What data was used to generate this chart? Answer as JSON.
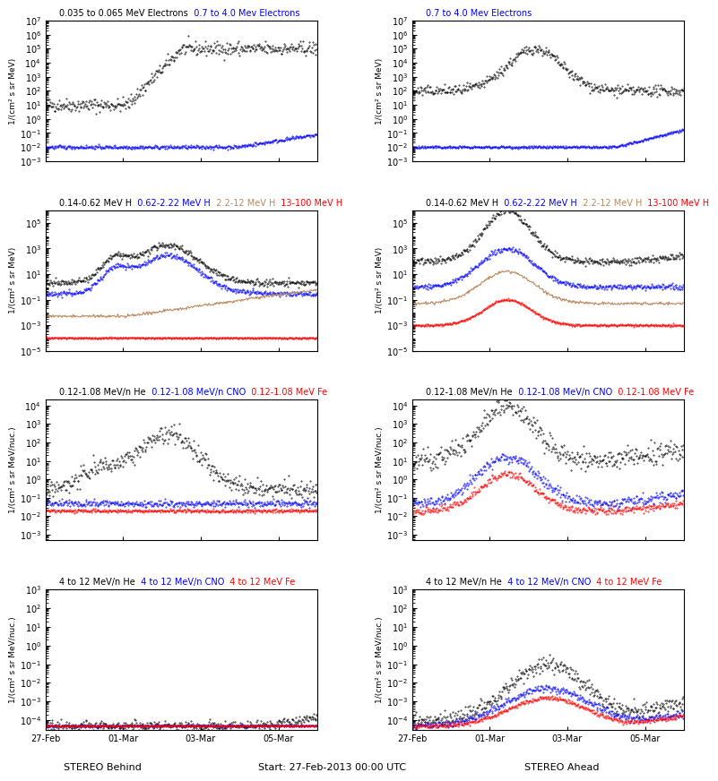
{
  "title_top": "Start: 27-Feb-2013 00:00 UTC",
  "xlabel_left": "STEREO Behind",
  "xlabel_right": "STEREO Ahead",
  "xtick_labels": [
    "27-Feb",
    "01-Mar",
    "03-Mar",
    "05-Mar"
  ],
  "background": "#ffffff",
  "panels": [
    {
      "row": 0,
      "col": 0,
      "title_parts": [
        {
          "text": "0.035 to 0.065 MeV Electrons",
          "color": "black"
        },
        {
          "text": "  0.7 to 4.0 Mev Electrons",
          "color": "blue"
        }
      ],
      "ylabel": "1/(cm² s sr MeV)",
      "ylim": [
        0.001,
        10000000.0
      ],
      "yticks": [
        0.01,
        1.0,
        100.0,
        10000.0,
        1000000.0
      ],
      "series": [
        {
          "color": "black",
          "base": 10.0,
          "noise": 0.8,
          "trend": "rise_late",
          "style": "dot"
        },
        {
          "color": "blue",
          "base": 0.01,
          "noise": 0.3,
          "trend": "flat_rise",
          "style": "dot"
        }
      ]
    },
    {
      "row": 0,
      "col": 1,
      "title_parts": [
        {
          "text": "0.7 to 4.0 Mev Electrons",
          "color": "blue"
        }
      ],
      "ylabel": "1/(cm² s sr MeV)",
      "ylim": [
        0.001,
        10000000.0
      ],
      "yticks": [
        0.01,
        1.0,
        100.0,
        10000.0,
        1000000.0
      ],
      "series": [
        {
          "color": "black",
          "base": 100.0,
          "noise": 0.6,
          "trend": "peak_mid",
          "style": "dot"
        },
        {
          "color": "blue",
          "base": 0.01,
          "noise": 0.2,
          "trend": "rise_late2",
          "style": "dot"
        }
      ]
    },
    {
      "row": 1,
      "col": 0,
      "title_parts": [
        {
          "text": "0.14-0.62 MeV H",
          "color": "black"
        },
        {
          "text": "  0.62-2.22 MeV H",
          "color": "blue"
        },
        {
          "text": "  2.2-12 MeV H",
          "color": "#bc8a5f"
        },
        {
          "text": "  13-100 MeV H",
          "color": "red"
        }
      ],
      "ylabel": "1/(cm² s sr MeV)",
      "ylim": [
        1e-05,
        1000000.0
      ],
      "yticks": [
        0.0001,
        0.01,
        1.0,
        100.0,
        10000.0
      ],
      "series": [
        {
          "color": "black",
          "base": 2.0,
          "noise": 0.5,
          "trend": "peak_mid2",
          "style": "dot"
        },
        {
          "color": "blue",
          "base": 0.3,
          "noise": 0.4,
          "trend": "peak_mid2",
          "style": "dot"
        },
        {
          "color": "#bc8a5f",
          "base": 0.005,
          "noise": 0.3,
          "trend": "rise_full",
          "style": "line"
        },
        {
          "color": "red",
          "base": 0.0001,
          "noise": 0.15,
          "trend": "flat_low",
          "style": "dot"
        }
      ]
    },
    {
      "row": 1,
      "col": 1,
      "title_parts": [
        {
          "text": "0.14-0.62 MeV H",
          "color": "black"
        },
        {
          "text": "  0.62-2.22 MeV H",
          "color": "blue"
        },
        {
          "text": "  2.2-12 MeV H",
          "color": "#bc8a5f"
        },
        {
          "text": "  13-100 MeV H",
          "color": "red"
        }
      ],
      "ylabel": "1/(cm² s sr MeV)",
      "ylim": [
        1e-05,
        1000000.0
      ],
      "yticks": [
        0.0001,
        0.01,
        1.0,
        100.0,
        10000.0
      ],
      "series": [
        {
          "color": "black",
          "base": 100.0,
          "noise": 0.5,
          "trend": "peak_early_high",
          "style": "dot"
        },
        {
          "color": "blue",
          "base": 1.0,
          "noise": 0.4,
          "trend": "peak_early",
          "style": "dot"
        },
        {
          "color": "#bc8a5f",
          "base": 0.05,
          "noise": 0.3,
          "trend": "peak_early_low",
          "style": "line"
        },
        {
          "color": "red",
          "base": 0.001,
          "noise": 0.2,
          "trend": "peak_early_vlow",
          "style": "dot"
        }
      ]
    },
    {
      "row": 2,
      "col": 0,
      "title_parts": [
        {
          "text": "0.12-1.08 MeV/n He",
          "color": "black"
        },
        {
          "text": "  0.12-1.08 MeV/n CNO",
          "color": "blue"
        },
        {
          "text": "  0.12-1.08 MeV Fe",
          "color": "red"
        }
      ],
      "ylabel": "1/(cm² s sr MeV/nuc.)",
      "ylim": [
        0.0005,
        20000.0
      ],
      "yticks": [
        0.001,
        0.1,
        10.0,
        1000.0
      ],
      "series": [
        {
          "color": "black",
          "base": 0.3,
          "noise": 0.6,
          "trend": "peak_mid3",
          "style": "dot"
        },
        {
          "color": "blue",
          "base": 0.05,
          "noise": 0.3,
          "trend": "flat_low2",
          "style": "dot"
        },
        {
          "color": "red",
          "base": 0.02,
          "noise": 0.2,
          "trend": "flat_vlow",
          "style": "dot"
        }
      ]
    },
    {
      "row": 2,
      "col": 1,
      "title_parts": [
        {
          "text": "0.12-1.08 MeV/n He",
          "color": "black"
        },
        {
          "text": "  0.12-1.08 MeV/n CNO",
          "color": "blue"
        },
        {
          "text": "  0.12-1.08 MeV Fe",
          "color": "red"
        }
      ],
      "ylabel": "1/(cm² s sr MeV/nuc.)",
      "ylim": [
        0.0005,
        20000.0
      ],
      "yticks": [
        0.001,
        0.1,
        10.0,
        1000.0
      ],
      "series": [
        {
          "color": "black",
          "base": 10.0,
          "noise": 0.7,
          "trend": "peak_full2",
          "style": "dot"
        },
        {
          "color": "blue",
          "base": 0.05,
          "noise": 0.4,
          "trend": "peak_full_low",
          "style": "dot"
        },
        {
          "color": "red",
          "base": 0.02,
          "noise": 0.3,
          "trend": "peak_full_vlow",
          "style": "dot"
        }
      ]
    },
    {
      "row": 3,
      "col": 0,
      "title_parts": [
        {
          "text": "4 to 12 MeV/n He",
          "color": "black"
        },
        {
          "text": "  4 to 12 MeV/n CNO",
          "color": "blue"
        },
        {
          "text": "  4 to 12 MeV Fe",
          "color": "red"
        }
      ],
      "ylabel": "1/(cm² s sr MeV/nuc.)",
      "ylim": [
        3e-05,
        1000.0
      ],
      "yticks": [
        0.0001,
        0.01,
        1.0,
        100.0
      ],
      "series": [
        {
          "color": "black",
          "base": 5e-05,
          "noise": 0.4,
          "trend": "rise_very_late",
          "style": "dot"
        },
        {
          "color": "blue",
          "base": 5e-05,
          "noise": 0.1,
          "trend": "flat_baseline",
          "style": "dot"
        },
        {
          "color": "red",
          "base": 5e-05,
          "noise": 0.1,
          "trend": "flat_baseline",
          "style": "dot"
        }
      ]
    },
    {
      "row": 3,
      "col": 1,
      "title_parts": [
        {
          "text": "4 to 12 MeV/n He",
          "color": "black"
        },
        {
          "text": "  4 to 12 MeV/n CNO",
          "color": "blue"
        },
        {
          "text": "  4 to 12 MeV Fe",
          "color": "red"
        }
      ],
      "ylabel": "1/(cm² s sr MeV/nuc.)",
      "ylim": [
        3e-05,
        1000.0
      ],
      "yticks": [
        0.0001,
        0.01,
        1.0,
        100.0
      ],
      "series": [
        {
          "color": "black",
          "base": 0.0001,
          "noise": 0.5,
          "trend": "peak_full3",
          "style": "dot"
        },
        {
          "color": "blue",
          "base": 5e-05,
          "noise": 0.3,
          "trend": "peak_full_low3",
          "style": "dot"
        },
        {
          "color": "red",
          "base": 5e-05,
          "noise": 0.2,
          "trend": "peak_full_vlow3",
          "style": "dot"
        }
      ]
    }
  ]
}
